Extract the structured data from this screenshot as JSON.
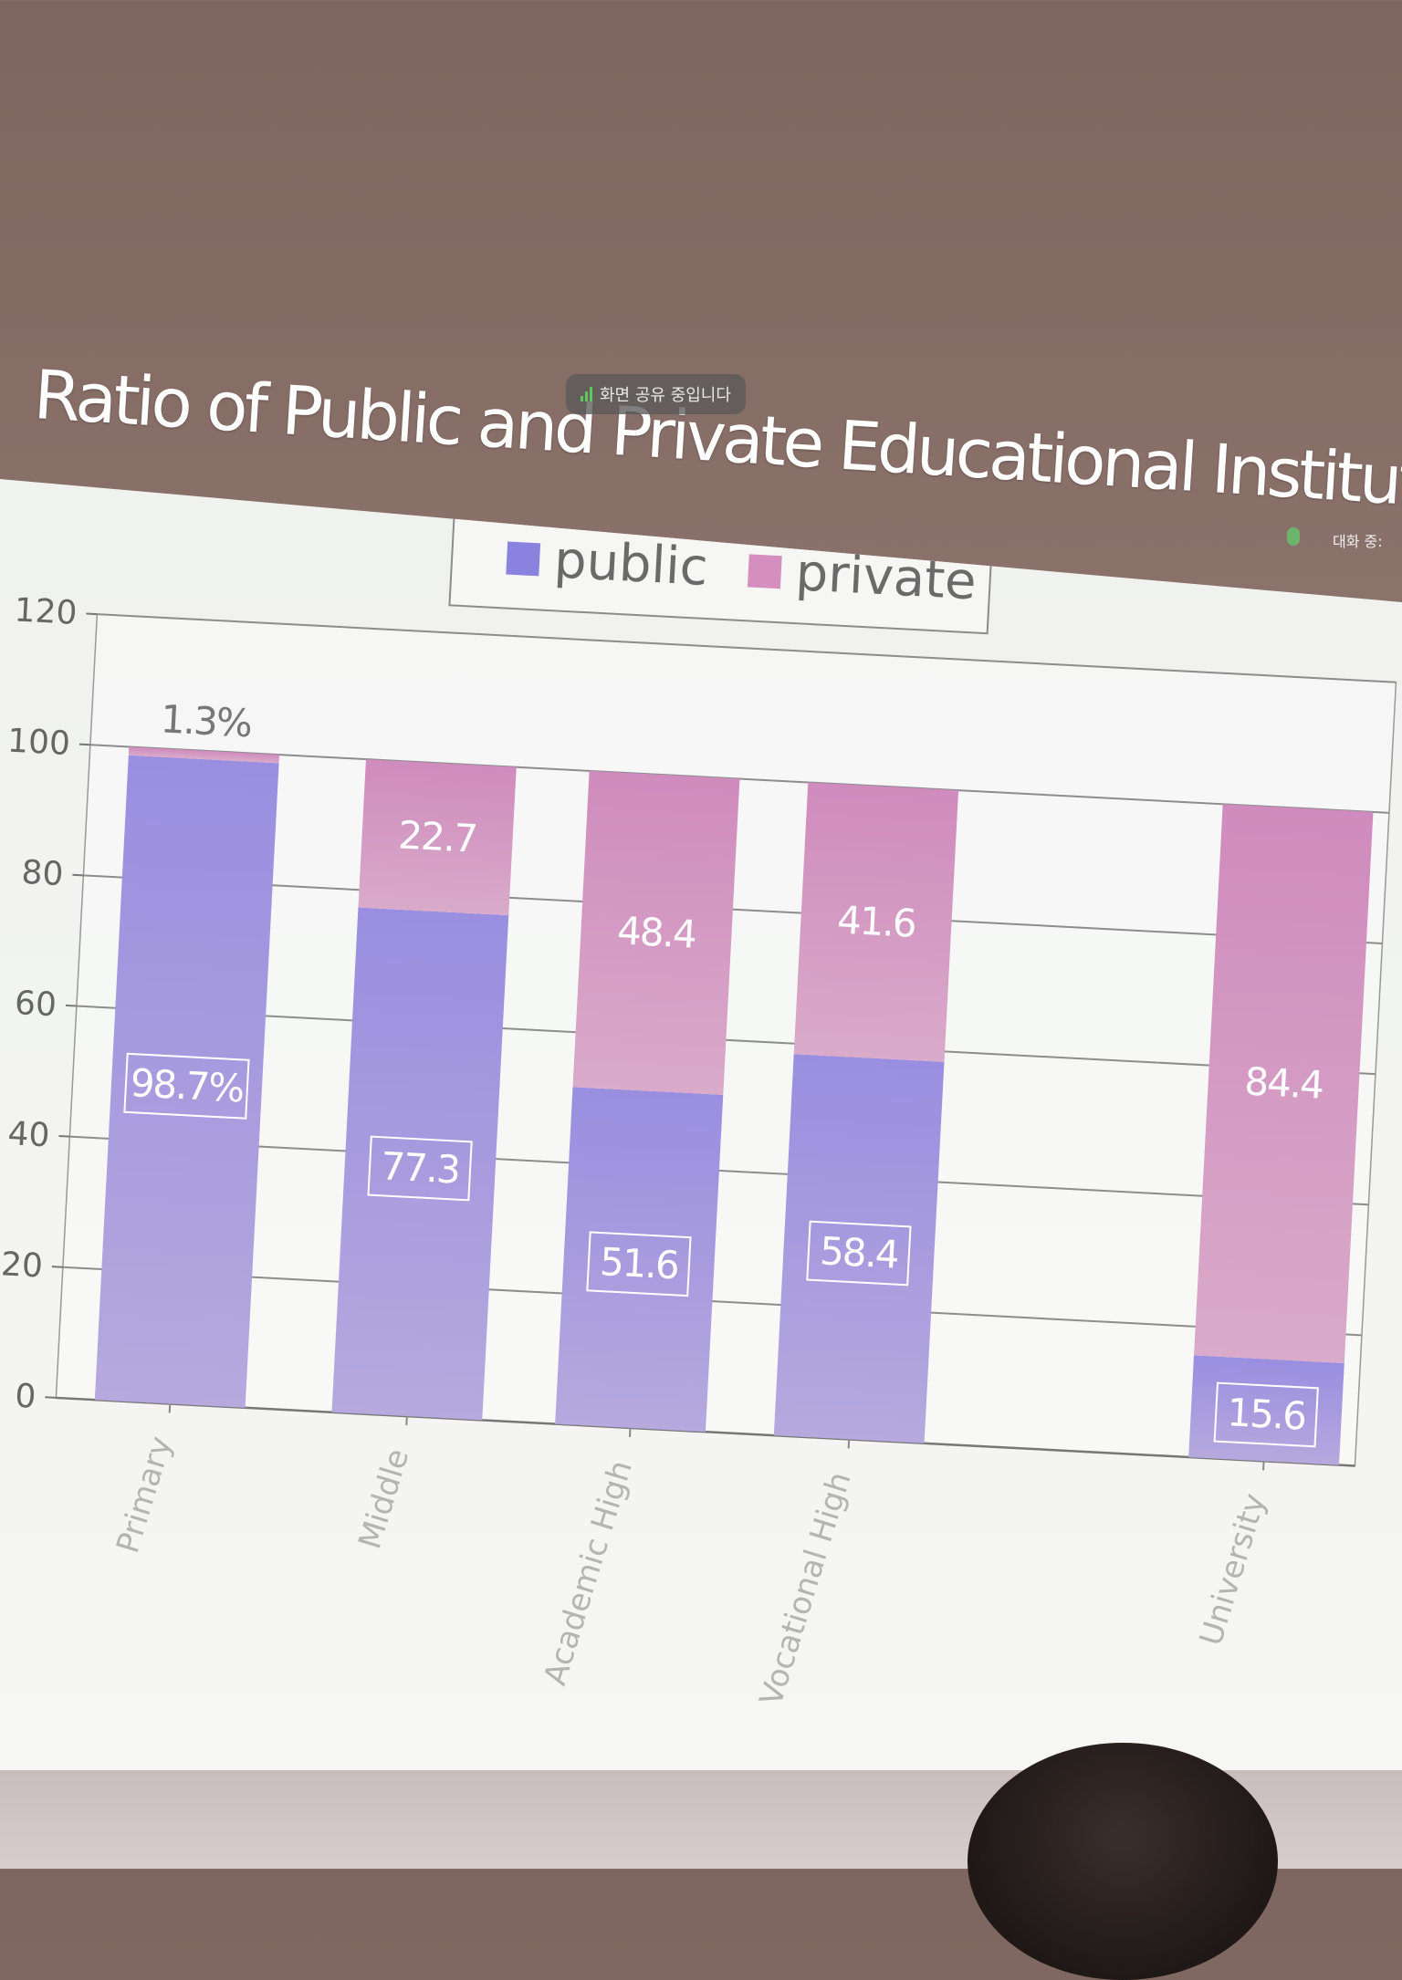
{
  "screen": {
    "title": "Ratio of Public and Private Educational Institute",
    "share_badge": "화면 공유 중입니다",
    "viewer_text": "대화 중:"
  },
  "colors": {
    "public": "#9a8ee0",
    "private": "#d58fbe",
    "background": "#7d665f"
  },
  "chart_data": {
    "type": "bar",
    "stacked": true,
    "title": "",
    "xlabel": "",
    "ylabel": "",
    "ylim": [
      0,
      120
    ],
    "yticks": [
      0,
      20,
      40,
      60,
      80,
      100,
      120
    ],
    "grid": true,
    "legend": "top-center",
    "categories": [
      "Primary",
      "Middle",
      "Academic High",
      "Vocational High",
      "University"
    ],
    "series": [
      {
        "name": "public",
        "values": [
          98.7,
          77.3,
          51.6,
          58.4,
          15.6
        ],
        "labels": [
          "98.7%",
          "77.3",
          "51.6",
          "58.4",
          "15.6"
        ]
      },
      {
        "name": "private",
        "values": [
          1.3,
          22.7,
          48.4,
          41.6,
          84.4
        ],
        "labels": [
          "1.3%",
          "22.7",
          "48.4",
          "41.6",
          "84.4"
        ]
      }
    ]
  }
}
